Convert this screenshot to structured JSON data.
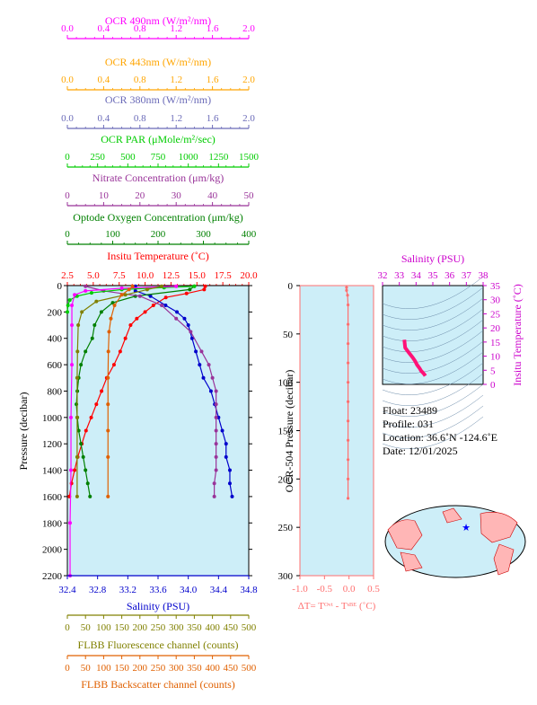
{
  "top_axes": [
    {
      "key": "ocr490",
      "title": "OCR 490nm (W/m²/nm)",
      "ticks": [
        "0.0",
        "0.4",
        "0.8",
        "1.2",
        "1.6",
        "2.0"
      ],
      "color": "#ff00ff"
    },
    {
      "key": "ocr443",
      "title": "OCR 443nm (W/m²/nm)",
      "ticks": [
        "0.0",
        "0.4",
        "0.8",
        "1.2",
        "1.6",
        "2.0"
      ],
      "color": "#ffa500"
    },
    {
      "key": "ocr380",
      "title": "OCR 380nm (W/m²/nm)",
      "ticks": [
        "0.0",
        "0.4",
        "0.8",
        "1.2",
        "1.6",
        "2.0"
      ],
      "color": "#6a6ab8"
    },
    {
      "key": "ocrpar",
      "title": "OCR PAR (μMole/m²/sec)",
      "ticks": [
        "0",
        "250",
        "500",
        "750",
        "1000",
        "1250",
        "1500"
      ],
      "color": "#00cc00"
    },
    {
      "key": "nitrate",
      "title": "Nitrate Concentration (μm/kg)",
      "ticks": [
        "0",
        "10",
        "20",
        "30",
        "40",
        "50"
      ],
      "color": "#993399"
    },
    {
      "key": "oxygen",
      "title": "Optode Oxygen Concentration (μm/kg)",
      "ticks": [
        "0",
        "100",
        "200",
        "300",
        "400"
      ],
      "color": "#008000"
    },
    {
      "key": "temp",
      "title": "Insitu Temperature (˚C)",
      "ticks": [
        "2.5",
        "5.0",
        "7.5",
        "10.0",
        "12.5",
        "15.0",
        "17.5",
        "20.0"
      ],
      "color": "#ff0000"
    }
  ],
  "bottom_axes": [
    {
      "key": "salinity",
      "title": "Salinity (PSU)",
      "ticks": [
        "32.4",
        "32.8",
        "33.2",
        "33.6",
        "34.0",
        "34.4",
        "34.8"
      ],
      "color": "#0000cc"
    },
    {
      "key": "fluor",
      "title": "FLBB Fluorescence channel (counts)",
      "ticks": [
        "0",
        "50",
        "100",
        "150",
        "200",
        "250",
        "300",
        "350",
        "400",
        "450",
        "500"
      ],
      "color": "#808000"
    },
    {
      "key": "backscatter",
      "title": "FLBB Backscatter channel (counts)",
      "ticks": [
        "0",
        "50",
        "100",
        "150",
        "200",
        "250",
        "300",
        "350",
        "400",
        "450",
        "500"
      ],
      "color": "#e06000"
    }
  ],
  "main_y": {
    "title": "Pressure (decibar)",
    "ticks": [
      "0",
      "200",
      "400",
      "600",
      "800",
      "1000",
      "1200",
      "1400",
      "1600",
      "1800",
      "2000",
      "2200"
    ]
  },
  "ocr_y": {
    "title": "OCR-504 Pressure (decibar)",
    "ticks": [
      "0",
      "50",
      "100",
      "150",
      "200",
      "250",
      "300"
    ]
  },
  "dt_x": {
    "ticks": [
      "-1.0",
      "-0.5",
      "0.0",
      "0.5"
    ],
    "title": "ΔT= Tᴼᵛᵗ - Tˢᴮᴱ (˚C)"
  },
  "ts": {
    "title_x": "Salinity (PSU)",
    "xticks": [
      "32",
      "33",
      "34",
      "35",
      "36",
      "37",
      "38"
    ],
    "title_y": "Insitu Temperature (˚C)",
    "yticks": [
      "0",
      "5",
      "10",
      "15",
      "20",
      "25",
      "30",
      "35"
    ]
  },
  "info": {
    "float": "Float:  23489",
    "profile": "Profile:  031",
    "location": "Location:  36.6˚N  -124.6˚E",
    "date": "Date:  12/01/2025"
  },
  "colors": {
    "panel_bg": "#cdeef8",
    "dt_series": "#ff6f6f"
  },
  "chart_data": {
    "type": "line",
    "ylim": [
      0,
      2200
    ],
    "series": [
      {
        "name": "Insitu Temperature",
        "xlim": [
          2.5,
          20
        ],
        "color": "#ff0000",
        "points": [
          [
            15.8,
            5
          ],
          [
            15.7,
            30
          ],
          [
            14.0,
            60
          ],
          [
            12.0,
            90
          ],
          [
            10.8,
            150
          ],
          [
            10.0,
            200
          ],
          [
            9.2,
            250
          ],
          [
            8.6,
            300
          ],
          [
            8.1,
            400
          ],
          [
            7.6,
            500
          ],
          [
            7.0,
            600
          ],
          [
            6.3,
            700
          ],
          [
            5.8,
            800
          ],
          [
            5.3,
            900
          ],
          [
            4.8,
            1000
          ],
          [
            4.3,
            1100
          ],
          [
            3.9,
            1200
          ],
          [
            3.5,
            1300
          ],
          [
            3.2,
            1400
          ],
          [
            2.9,
            1500
          ],
          [
            2.7,
            1600
          ]
        ]
      },
      {
        "name": "Salinity",
        "xlim": [
          32.4,
          34.8
        ],
        "color": "#0000cc",
        "points": [
          [
            33.3,
            5
          ],
          [
            33.3,
            40
          ],
          [
            33.5,
            80
          ],
          [
            33.7,
            150
          ],
          [
            33.85,
            200
          ],
          [
            33.95,
            250
          ],
          [
            34.0,
            300
          ],
          [
            34.05,
            400
          ],
          [
            34.1,
            500
          ],
          [
            34.15,
            600
          ],
          [
            34.2,
            700
          ],
          [
            34.3,
            800
          ],
          [
            34.35,
            900
          ],
          [
            34.4,
            1000
          ],
          [
            34.45,
            1100
          ],
          [
            34.5,
            1200
          ],
          [
            34.5,
            1300
          ],
          [
            34.55,
            1400
          ],
          [
            34.55,
            1500
          ],
          [
            34.58,
            1600
          ]
        ]
      },
      {
        "name": "Optode Oxygen Concentration",
        "xlim": [
          0,
          400
        ],
        "color": "#008000",
        "points": [
          [
            280,
            5
          ],
          [
            270,
            30
          ],
          [
            150,
            80
          ],
          [
            100,
            130
          ],
          [
            75,
            200
          ],
          [
            60,
            300
          ],
          [
            55,
            400
          ],
          [
            40,
            500
          ],
          [
            30,
            600
          ],
          [
            25,
            700
          ],
          [
            22,
            800
          ],
          [
            20,
            900
          ],
          [
            22,
            1000
          ],
          [
            25,
            1100
          ],
          [
            30,
            1200
          ],
          [
            35,
            1300
          ],
          [
            40,
            1400
          ],
          [
            45,
            1500
          ],
          [
            50,
            1600
          ]
        ]
      },
      {
        "name": "Nitrate Concentration",
        "xlim": [
          0,
          50
        ],
        "color": "#993399",
        "points": [
          [
            5,
            5
          ],
          [
            10,
            40
          ],
          [
            20,
            80
          ],
          [
            26,
            150
          ],
          [
            30,
            250
          ],
          [
            34,
            350
          ],
          [
            37,
            500
          ],
          [
            39,
            600
          ],
          [
            40,
            700
          ],
          [
            41,
            800
          ],
          [
            41,
            900
          ],
          [
            41,
            1000
          ],
          [
            41,
            1100
          ],
          [
            41,
            1200
          ],
          [
            41,
            1300
          ],
          [
            41,
            1400
          ],
          [
            40.5,
            1500
          ],
          [
            40.5,
            1600
          ]
        ]
      },
      {
        "name": "OCR PAR",
        "xlim": [
          0,
          1500
        ],
        "color": "#00cc00",
        "points": [
          [
            1050,
            5
          ],
          [
            800,
            15
          ],
          [
            450,
            30
          ],
          [
            200,
            55
          ],
          [
            80,
            80
          ],
          [
            20,
            110
          ],
          [
            5,
            150
          ],
          [
            0,
            200
          ]
        ]
      },
      {
        "name": "OCR 490nm",
        "xlim": [
          0,
          2
        ],
        "color": "#ff00ff",
        "points": [
          [
            1.2,
            5
          ],
          [
            0.6,
            20
          ],
          [
            0.2,
            40
          ],
          [
            0.08,
            70
          ],
          [
            0.05,
            150
          ],
          [
            0.05,
            300
          ],
          [
            0.05,
            600
          ],
          [
            0.04,
            1000
          ],
          [
            0.04,
            1400
          ],
          [
            0.03,
            1800
          ],
          [
            0.03,
            2200
          ]
        ]
      },
      {
        "name": "FLBB Fluorescence",
        "xlim": [
          0,
          500
        ],
        "color": "#808000",
        "points": [
          [
            260,
            5
          ],
          [
            220,
            30
          ],
          [
            160,
            70
          ],
          [
            80,
            120
          ],
          [
            40,
            200
          ],
          [
            30,
            300
          ],
          [
            28,
            500
          ],
          [
            27,
            700
          ],
          [
            27,
            1000
          ],
          [
            27,
            1300
          ],
          [
            27,
            1600
          ]
        ]
      },
      {
        "name": "FLBB Backscatter",
        "xlim": [
          0,
          500
        ],
        "color": "#e06000",
        "points": [
          [
            180,
            5
          ],
          [
            170,
            30
          ],
          [
            150,
            70
          ],
          [
            130,
            150
          ],
          [
            120,
            250
          ],
          [
            115,
            350
          ],
          [
            113,
            500
          ],
          [
            112,
            700
          ],
          [
            112,
            900
          ],
          [
            112,
            1100
          ],
          [
            112,
            1300
          ],
          [
            112,
            1600
          ]
        ]
      }
    ],
    "dt_series": {
      "xlim": [
        -1.0,
        0.5
      ],
      "ylim": [
        0,
        300
      ],
      "points": [
        [
          -0.05,
          2
        ],
        [
          -0.05,
          5
        ],
        [
          -0.03,
          10
        ],
        [
          -0.02,
          20
        ],
        [
          -0.02,
          40
        ],
        [
          -0.02,
          60
        ],
        [
          -0.02,
          80
        ],
        [
          -0.02,
          100
        ],
        [
          -0.02,
          120
        ],
        [
          -0.02,
          140
        ],
        [
          -0.02,
          160
        ],
        [
          -0.02,
          180
        ],
        [
          -0.02,
          200
        ],
        [
          -0.02,
          220
        ]
      ]
    },
    "ts_series": {
      "xlim": [
        32,
        38
      ],
      "ylim": [
        0,
        35
      ],
      "points": [
        [
          33.3,
          15.8
        ],
        [
          33.35,
          13
        ],
        [
          33.6,
          11
        ],
        [
          33.8,
          9.5
        ],
        [
          33.95,
          8.2
        ],
        [
          34.05,
          7
        ],
        [
          34.2,
          5.8
        ],
        [
          34.3,
          4.8
        ],
        [
          34.4,
          4.2
        ],
        [
          34.5,
          3.5
        ],
        [
          34.55,
          3
        ]
      ]
    }
  }
}
